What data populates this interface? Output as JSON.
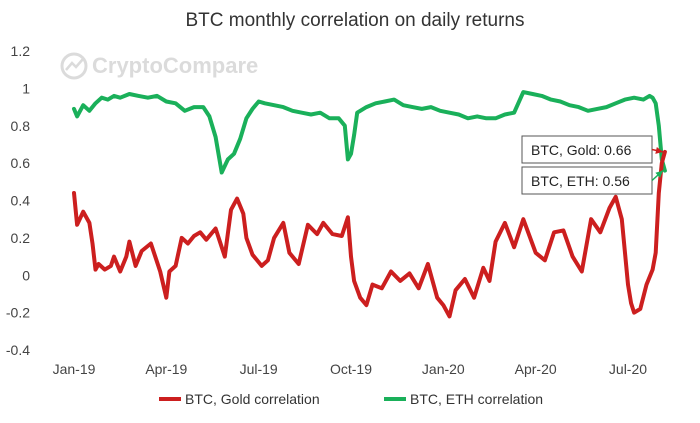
{
  "chart_data": {
    "type": "line",
    "title": "BTC monthly correlation on daily returns",
    "watermark": "CryptoCompare",
    "xlabel": "",
    "ylabel": "",
    "ylim": [
      -0.4,
      1.2
    ],
    "yticks": [
      -0.4,
      -0.2,
      0,
      0.2,
      0.4,
      0.6,
      0.8,
      1,
      1.2
    ],
    "ytick_labels": [
      "-0.4",
      "-0.2",
      "0",
      "0.2",
      "0.4",
      "0.6",
      "0.8",
      "1",
      "1.2"
    ],
    "xlim": [
      0,
      19.3
    ],
    "xticks": [
      0,
      3,
      6,
      9,
      12,
      15,
      18
    ],
    "xtick_labels": [
      "Jan-19",
      "Apr-19",
      "Jul-19",
      "Oct-19",
      "Jan-20",
      "Apr-20",
      "Jul-20"
    ],
    "grid": false,
    "legend_position": "bottom",
    "colors": {
      "gold": "#cc1f1f",
      "eth": "#1ab05a",
      "title": "#333333",
      "axis": "#444444"
    },
    "series": [
      {
        "name": "BTC, Gold correlation",
        "color": "#cc1f1f",
        "x": [
          0.0,
          0.1,
          0.3,
          0.5,
          0.6,
          0.7,
          0.8,
          1.0,
          1.2,
          1.3,
          1.5,
          1.7,
          1.8,
          2.0,
          2.2,
          2.5,
          2.8,
          3.0,
          3.1,
          3.3,
          3.5,
          3.7,
          3.9,
          4.1,
          4.3,
          4.6,
          4.9,
          5.1,
          5.3,
          5.5,
          5.6,
          5.8,
          6.1,
          6.3,
          6.5,
          6.8,
          7.0,
          7.3,
          7.6,
          7.9,
          8.1,
          8.4,
          8.7,
          8.9,
          9.0,
          9.1,
          9.3,
          9.5,
          9.7,
          10.0,
          10.3,
          10.6,
          10.9,
          11.2,
          11.5,
          11.8,
          12.0,
          12.2,
          12.4,
          12.7,
          13.0,
          13.3,
          13.5,
          13.7,
          14.0,
          14.3,
          14.6,
          15.0,
          15.3,
          15.6,
          15.9,
          16.2,
          16.5,
          16.8,
          17.1,
          17.4,
          17.6,
          17.8,
          18.0,
          18.1,
          18.2,
          18.4,
          18.6,
          18.8,
          18.9,
          19.0,
          19.1,
          19.2
        ],
        "values": [
          0.44,
          0.27,
          0.34,
          0.28,
          0.17,
          0.03,
          0.06,
          0.03,
          0.05,
          0.1,
          0.02,
          0.1,
          0.18,
          0.05,
          0.13,
          0.17,
          0.02,
          -0.12,
          0.02,
          0.05,
          0.2,
          0.17,
          0.21,
          0.23,
          0.19,
          0.25,
          0.1,
          0.35,
          0.41,
          0.33,
          0.2,
          0.11,
          0.05,
          0.08,
          0.2,
          0.28,
          0.12,
          0.06,
          0.27,
          0.22,
          0.28,
          0.22,
          0.21,
          0.31,
          0.1,
          -0.03,
          -0.12,
          -0.16,
          -0.05,
          -0.07,
          0.02,
          -0.03,
          0.01,
          -0.07,
          0.06,
          -0.12,
          -0.16,
          -0.22,
          -0.08,
          -0.02,
          -0.12,
          0.04,
          -0.03,
          0.18,
          0.28,
          0.15,
          0.3,
          0.12,
          0.08,
          0.23,
          0.24,
          0.1,
          0.02,
          0.3,
          0.23,
          0.36,
          0.42,
          0.3,
          -0.05,
          -0.15,
          -0.2,
          -0.18,
          -0.05,
          0.03,
          0.12,
          0.44,
          0.6,
          0.66
        ]
      },
      {
        "name": "BTC, ETH correlation",
        "color": "#1ab05a",
        "x": [
          0.0,
          0.1,
          0.3,
          0.5,
          0.7,
          0.9,
          1.1,
          1.3,
          1.5,
          1.8,
          2.1,
          2.4,
          2.7,
          3.0,
          3.3,
          3.6,
          3.9,
          4.2,
          4.4,
          4.6,
          4.8,
          5.0,
          5.2,
          5.4,
          5.6,
          5.8,
          6.0,
          6.2,
          6.5,
          6.8,
          7.1,
          7.4,
          7.7,
          8.0,
          8.3,
          8.6,
          8.8,
          8.9,
          9.0,
          9.1,
          9.2,
          9.5,
          9.8,
          10.1,
          10.4,
          10.7,
          11.0,
          11.3,
          11.6,
          11.9,
          12.2,
          12.5,
          12.8,
          13.1,
          13.4,
          13.7,
          14.0,
          14.3,
          14.6,
          14.9,
          15.2,
          15.5,
          15.8,
          16.1,
          16.4,
          16.7,
          17.0,
          17.3,
          17.6,
          17.9,
          18.2,
          18.5,
          18.7,
          18.8,
          18.9,
          19.0,
          19.1,
          19.2
        ],
        "values": [
          0.89,
          0.85,
          0.91,
          0.88,
          0.92,
          0.95,
          0.94,
          0.96,
          0.95,
          0.97,
          0.96,
          0.95,
          0.96,
          0.93,
          0.92,
          0.88,
          0.9,
          0.9,
          0.85,
          0.74,
          0.55,
          0.62,
          0.65,
          0.73,
          0.84,
          0.89,
          0.93,
          0.92,
          0.91,
          0.9,
          0.88,
          0.87,
          0.86,
          0.87,
          0.84,
          0.84,
          0.8,
          0.62,
          0.65,
          0.75,
          0.87,
          0.9,
          0.92,
          0.93,
          0.94,
          0.91,
          0.9,
          0.89,
          0.9,
          0.88,
          0.87,
          0.86,
          0.84,
          0.85,
          0.84,
          0.84,
          0.86,
          0.87,
          0.98,
          0.97,
          0.96,
          0.94,
          0.93,
          0.91,
          0.9,
          0.88,
          0.89,
          0.9,
          0.92,
          0.94,
          0.95,
          0.94,
          0.96,
          0.95,
          0.92,
          0.8,
          0.62,
          0.56
        ]
      }
    ],
    "annotations": [
      {
        "text": "BTC, Gold: 0.66",
        "target_series": "BTC, Gold correlation",
        "value": 0.66
      },
      {
        "text": "BTC, ETH: 0.56",
        "target_series": "BTC, ETH correlation",
        "value": 0.56
      }
    ]
  }
}
